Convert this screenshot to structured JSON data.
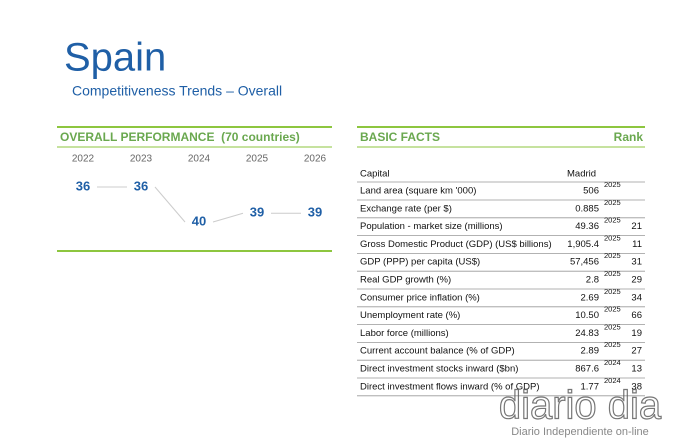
{
  "header": {
    "title": "Spain",
    "subtitle": "Competitiveness Trends – Overall"
  },
  "performance": {
    "title": "OVERALL PERFORMANCE  (70 countries)",
    "years": [
      "2022",
      "2023",
      "2024",
      "2025",
      "2026"
    ],
    "ranks": [
      36,
      36,
      40,
      39,
      39
    ]
  },
  "basic_facts": {
    "title": "BASIC FACTS",
    "rank_header": "Rank",
    "capital_label": "Capital",
    "capital": "Madrid",
    "rows": [
      {
        "label": "Land area (square km '000)",
        "value": "506",
        "year": "2025"
      },
      {
        "label": "Exchange rate (per $)",
        "value": "0.885",
        "year": "2025"
      },
      {
        "label": "Population - market size (millions)",
        "value": "49.36",
        "year": "2025",
        "rank": "21"
      },
      {
        "label": "Gross Domestic Product (GDP) (US$ billions)",
        "value": "1,905.4",
        "year": "2025",
        "rank": "11"
      },
      {
        "label": "GDP (PPP) per capita (US$)",
        "value": "57,456",
        "year": "2025",
        "rank": "31"
      },
      {
        "label": "Real GDP growth (%)",
        "value": "2.8",
        "year": "2025",
        "rank": "29"
      },
      {
        "label": "Consumer price inflation (%)",
        "value": "2.69",
        "year": "2025",
        "rank": "34"
      },
      {
        "label": "Unemployment rate (%)",
        "value": "10.50",
        "year": "2025",
        "rank": "66"
      },
      {
        "label": "Labor force (millions)",
        "value": "24.83",
        "year": "2025",
        "rank": "19"
      },
      {
        "label": "Current account balance (% of GDP)",
        "value": "2.89",
        "year": "2025",
        "rank": "27"
      },
      {
        "label": "Direct investment stocks inward ($bn)",
        "value": "867.6",
        "year": "2024",
        "rank": "13"
      },
      {
        "label": "Direct investment flows inward (% of GDP)",
        "value": "1.77",
        "year": "2024",
        "rank": "38"
      }
    ]
  },
  "watermark": {
    "brand": "diario dia",
    "tagline": "Diario Independiente on-line"
  }
}
